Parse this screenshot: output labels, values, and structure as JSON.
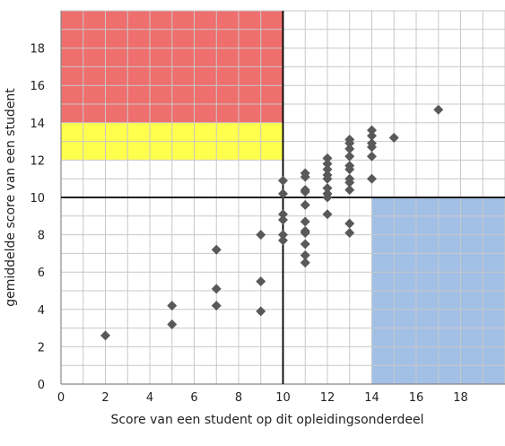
{
  "chart_data": {
    "type": "scatter",
    "title": "",
    "xlabel": "Score van een student op dit opleidingsonderdeel",
    "ylabel": "gemiddelde score van een student",
    "xlim": [
      0,
      20
    ],
    "ylim": [
      0,
      20
    ],
    "grid": true,
    "x_ticks": [
      0,
      2,
      4,
      6,
      8,
      10,
      12,
      14,
      16,
      18
    ],
    "y_ticks": [
      0,
      2,
      4,
      6,
      8,
      10,
      12,
      14,
      16,
      18
    ],
    "marker_color": "#595959",
    "reference_lines": {
      "x": 10,
      "y": 10
    },
    "regions": [
      {
        "x0": 0,
        "x1": 10,
        "y0": 14,
        "y1": 20,
        "color": "#ee6f6d"
      },
      {
        "x0": 0,
        "x1": 10,
        "y0": 12,
        "y1": 14,
        "color": "#ffff4d"
      },
      {
        "x0": 14,
        "x1": 20,
        "y0": 0,
        "y1": 10,
        "color": "#a2bfe6"
      }
    ],
    "points": [
      [
        2,
        2.6
      ],
      [
        5,
        4.2
      ],
      [
        5,
        3.2
      ],
      [
        7,
        7.2
      ],
      [
        7,
        5.1
      ],
      [
        7,
        4.2
      ],
      [
        9,
        8.0
      ],
      [
        9,
        5.5
      ],
      [
        9,
        3.9
      ],
      [
        10,
        10.9
      ],
      [
        10,
        10.2
      ],
      [
        10,
        9.1
      ],
      [
        10,
        8.8
      ],
      [
        10,
        8.0
      ],
      [
        10,
        7.7
      ],
      [
        11,
        11.3
      ],
      [
        11,
        11.1
      ],
      [
        11,
        10.4
      ],
      [
        11,
        10.3
      ],
      [
        11,
        9.6
      ],
      [
        11,
        8.7
      ],
      [
        11,
        8.2
      ],
      [
        11,
        8.1
      ],
      [
        11,
        7.5
      ],
      [
        11,
        6.9
      ],
      [
        11,
        6.5
      ],
      [
        12,
        12.1
      ],
      [
        12,
        11.8
      ],
      [
        12,
        11.5
      ],
      [
        12,
        11.2
      ],
      [
        12,
        11.0
      ],
      [
        12,
        10.5
      ],
      [
        12,
        10.2
      ],
      [
        12,
        10.0
      ],
      [
        12,
        9.1
      ],
      [
        13,
        13.1
      ],
      [
        13,
        12.9
      ],
      [
        13,
        12.6
      ],
      [
        13,
        12.2
      ],
      [
        13,
        11.7
      ],
      [
        13,
        11.5
      ],
      [
        13,
        11.0
      ],
      [
        13,
        10.8
      ],
      [
        13,
        10.4
      ],
      [
        13,
        8.6
      ],
      [
        13,
        8.1
      ],
      [
        14,
        13.6
      ],
      [
        14,
        13.3
      ],
      [
        14,
        12.9
      ],
      [
        14,
        12.7
      ],
      [
        14,
        12.2
      ],
      [
        14,
        11.0
      ],
      [
        15,
        13.2
      ],
      [
        17,
        14.7
      ]
    ]
  }
}
